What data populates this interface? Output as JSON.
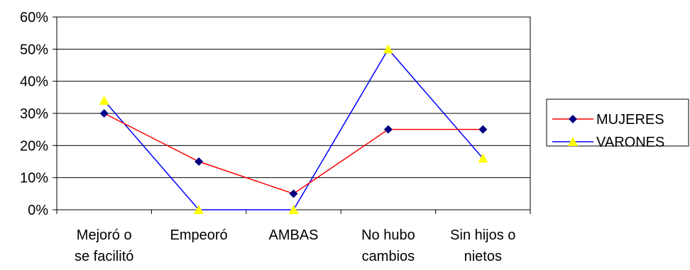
{
  "chart_data": {
    "type": "line",
    "title": "",
    "xlabel": "",
    "ylabel": "",
    "categories": [
      [
        "Mejoró o",
        "se facilitó"
      ],
      [
        "Empeoró"
      ],
      [
        "AMBAS"
      ],
      [
        "No hubo",
        "cambios"
      ],
      [
        "Sin hijos o",
        "nietos"
      ]
    ],
    "y_ticks": [
      "0%",
      "10%",
      "20%",
      "30%",
      "40%",
      "50%",
      "60%"
    ],
    "ylim": [
      0,
      60
    ],
    "grid": true,
    "legend_position": "right",
    "series": [
      {
        "name": "MUJERES",
        "values": [
          30,
          15,
          5,
          25,
          25
        ],
        "line_color": "#ff0000",
        "marker": "diamond",
        "marker_color": "#000080"
      },
      {
        "name": "VARONES",
        "values": [
          34,
          0,
          0,
          50,
          16
        ],
        "line_color": "#0000ff",
        "marker": "triangle",
        "marker_color": "#ffff00"
      }
    ]
  }
}
